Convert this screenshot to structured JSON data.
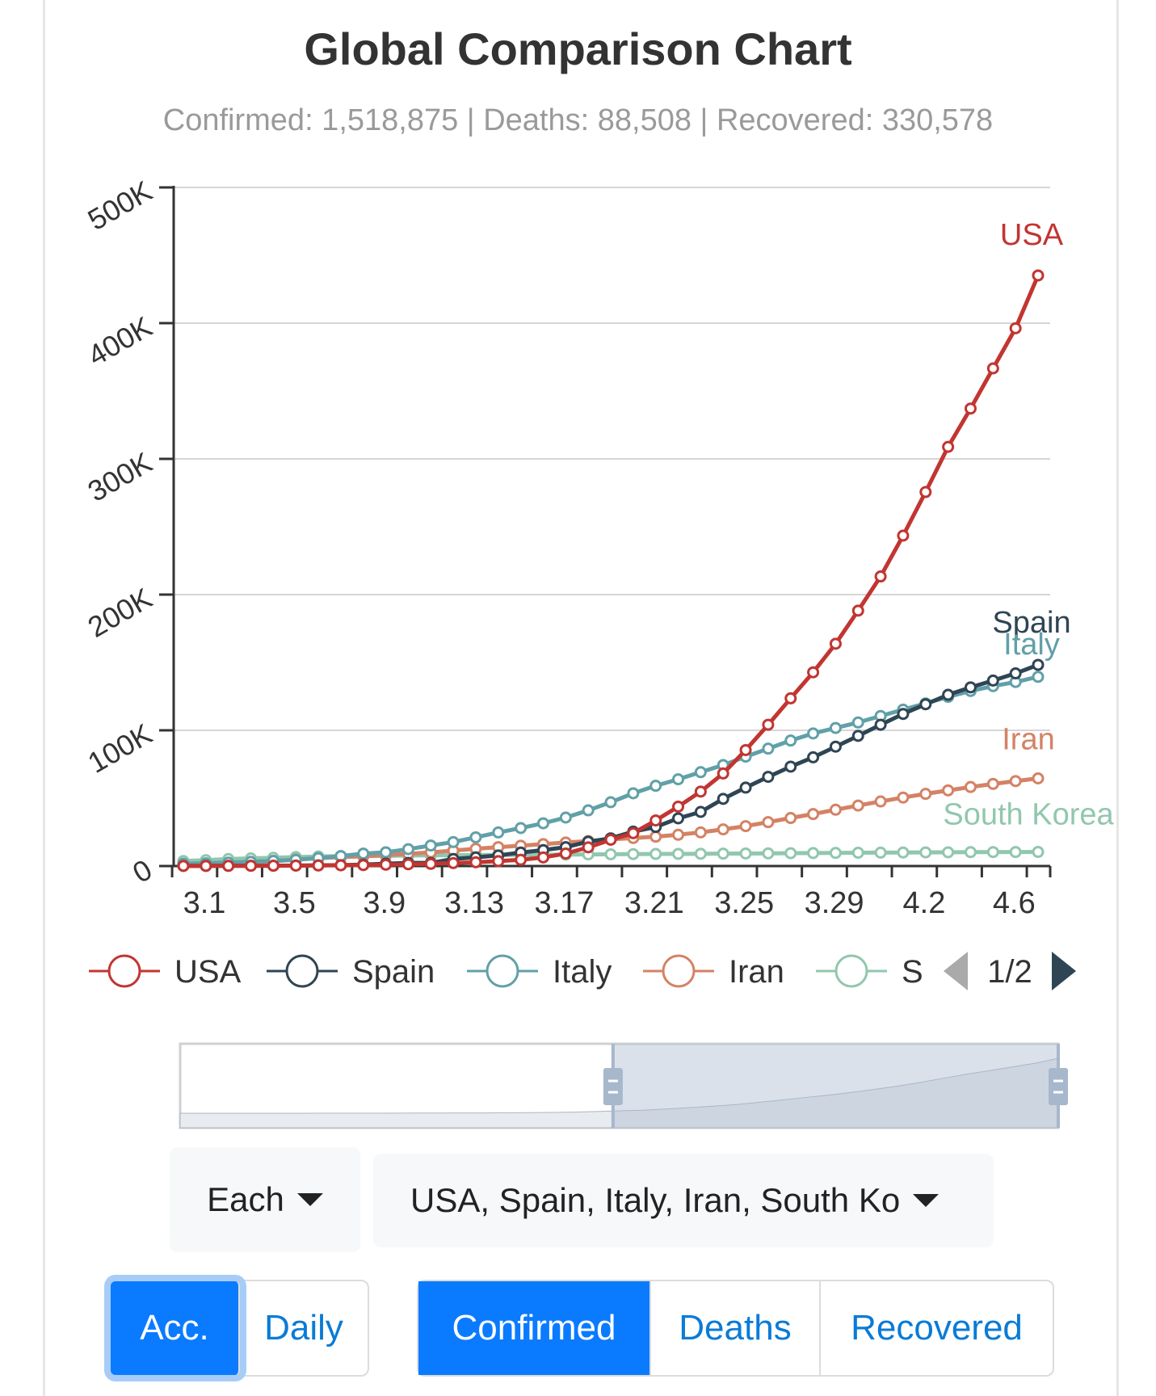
{
  "header": {
    "title": "Global Comparison Chart",
    "subtitle": "Confirmed: 1,518,875 | Deaths: 88,508 | Recovered: 330,578"
  },
  "chart_data": {
    "type": "line",
    "x": [
      "3.1",
      "3.2",
      "3.3",
      "3.4",
      "3.5",
      "3.6",
      "3.7",
      "3.8",
      "3.9",
      "3.10",
      "3.11",
      "3.12",
      "3.13",
      "3.14",
      "3.15",
      "3.16",
      "3.17",
      "3.18",
      "3.19",
      "3.20",
      "3.21",
      "3.22",
      "3.23",
      "3.24",
      "3.25",
      "3.26",
      "3.27",
      "3.28",
      "3.29",
      "3.30",
      "3.31",
      "4.1",
      "4.2",
      "4.3",
      "4.4",
      "4.5",
      "4.6",
      "4.7",
      "4.8"
    ],
    "x_tick_labels": [
      "3.1",
      "3.5",
      "3.9",
      "3.13",
      "3.17",
      "3.21",
      "3.25",
      "3.29",
      "4.2",
      "4.6"
    ],
    "y_tick_labels": [
      "0",
      "100K",
      "200K",
      "300K",
      "400K",
      "500K"
    ],
    "ylim": [
      0,
      500000
    ],
    "grid": true,
    "legend": "bottom",
    "series": [
      {
        "name": "USA",
        "color": "#c23531",
        "values": [
          75,
          100,
          124,
          158,
          221,
          319,
          435,
          541,
          704,
          994,
          1301,
          1630,
          2183,
          2770,
          3613,
          4596,
          6344,
          9197,
          13779,
          19367,
          24192,
          33592,
          43781,
          54856,
          68211,
          85435,
          104126,
          123578,
          142735,
          163788,
          188172,
          213372,
          243453,
          275586,
          308850,
          337072,
          366667,
          396223,
          435128
        ]
      },
      {
        "name": "Spain",
        "color": "#2f4554",
        "values": [
          84,
          120,
          165,
          222,
          259,
          400,
          500,
          673,
          1073,
          1695,
          2277,
          2277,
          5232,
          6391,
          7798,
          9942,
          11748,
          13910,
          17963,
          20410,
          25374,
          28768,
          35136,
          39885,
          49515,
          57786,
          65719,
          73235,
          80110,
          87956,
          95923,
          104118,
          112065,
          119199,
          126168,
          131646,
          136675,
          141942,
          148220
        ]
      },
      {
        "name": "Italy",
        "color": "#61a0a8",
        "values": [
          1694,
          2036,
          2502,
          3089,
          3858,
          4636,
          5883,
          7375,
          9172,
          10149,
          12462,
          15113,
          17660,
          21157,
          24747,
          27980,
          31506,
          35713,
          41035,
          47021,
          53578,
          59138,
          63927,
          69176,
          74386,
          80589,
          86498,
          92472,
          97689,
          101739,
          105792,
          110574,
          115242,
          119827,
          124632,
          128948,
          132547,
          135586,
          139422
        ]
      },
      {
        "name": "Iran",
        "color": "#d48265",
        "values": [
          978,
          1501,
          2336,
          2922,
          3513,
          4747,
          5823,
          6566,
          7161,
          8042,
          9000,
          10075,
          11364,
          12729,
          13938,
          14991,
          16169,
          17361,
          18407,
          19644,
          20610,
          21638,
          23049,
          24811,
          27017,
          29406,
          32332,
          35408,
          38309,
          41495,
          44605,
          47593,
          50468,
          53183,
          55743,
          58226,
          60500,
          62589,
          64586
        ]
      },
      {
        "name": "South Korea",
        "color": "#91c7ae",
        "values": [
          3736,
          4335,
          5186,
          5621,
          6088,
          6593,
          7041,
          7314,
          7478,
          7513,
          7755,
          7869,
          7979,
          8086,
          8162,
          8236,
          8320,
          8413,
          8565,
          8652,
          8799,
          8897,
          8961,
          9037,
          9137,
          9241,
          9332,
          9478,
          9583,
          9661,
          9786,
          9887,
          9976,
          10062,
          10156,
          10237,
          10284,
          10331,
          10384
        ]
      }
    ]
  },
  "legend": {
    "items": [
      "USA",
      "Spain",
      "Italy",
      "Iran",
      "S"
    ],
    "page": "1/2"
  },
  "controls": {
    "scope_select": "Each",
    "country_select": "USA, Spain, Italy, Iran, South Ko",
    "mode_buttons": [
      "Acc.",
      "Daily"
    ],
    "metric_buttons": [
      "Confirmed",
      "Deaths",
      "Recovered"
    ]
  }
}
